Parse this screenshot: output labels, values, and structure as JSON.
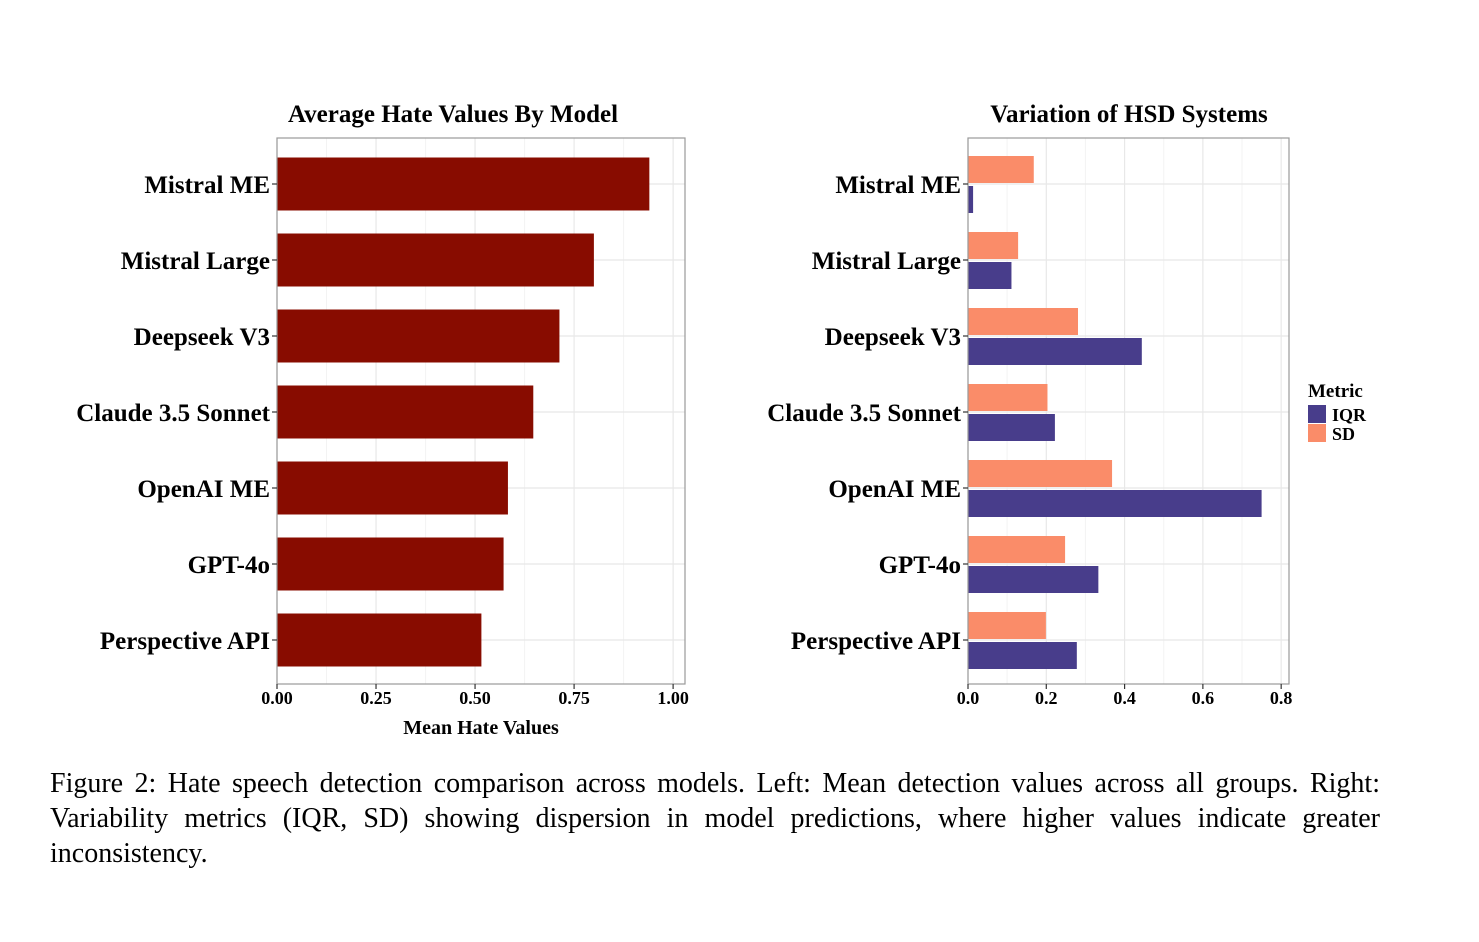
{
  "chart_data": [
    {
      "type": "bar",
      "orientation": "horizontal",
      "title": "Average Hate Values By Model",
      "xlabel": "Mean Hate Values",
      "ylabel": "",
      "categories": [
        "Mistral ME",
        "Mistral Large",
        "Deepseek V3",
        "Claude 3.5 Sonnet",
        "OpenAI ME",
        "GPT-4o",
        "Perspective API"
      ],
      "values": [
        0.94,
        0.8,
        0.713,
        0.647,
        0.583,
        0.572,
        0.516
      ],
      "xlim": [
        0,
        1.03
      ],
      "xticks": [
        "0.00",
        "0.25",
        "0.50",
        "0.75",
        "1.00"
      ],
      "xtick_values": [
        0,
        0.25,
        0.5,
        0.75,
        1.0
      ],
      "color": "#880c00",
      "grid": true
    },
    {
      "type": "bar",
      "orientation": "horizontal",
      "grouped": true,
      "title": "Variation of HSD Systems",
      "xlabel": "",
      "ylabel": "",
      "categories": [
        "Mistral ME",
        "Mistral Large",
        "Deepseek V3",
        "Claude 3.5 Sonnet",
        "OpenAI ME",
        "GPT-4o",
        "Perspective API"
      ],
      "series": [
        {
          "name": "IQR",
          "color": "#483d8b",
          "values": [
            0.013,
            0.111,
            0.444,
            0.222,
            0.75,
            0.333,
            0.278
          ]
        },
        {
          "name": "SD",
          "color": "#fa8c69",
          "values": [
            0.168,
            0.128,
            0.281,
            0.203,
            0.368,
            0.248,
            0.199
          ]
        }
      ],
      "xlim": [
        0,
        0.82
      ],
      "xticks": [
        "0.0",
        "0.2",
        "0.4",
        "0.6",
        "0.8"
      ],
      "xtick_values": [
        0,
        0.2,
        0.4,
        0.6,
        0.8
      ],
      "legend": {
        "title": "Metric",
        "position": "right",
        "entries": [
          "IQR",
          "SD"
        ]
      },
      "grid": true
    }
  ],
  "caption": "Figure 2: Hate speech detection comparison across models. Left: Mean detection values across all groups. Right: Variability metrics (IQR, SD) showing dispersion in model predictions, where higher values indicate greater inconsistency."
}
